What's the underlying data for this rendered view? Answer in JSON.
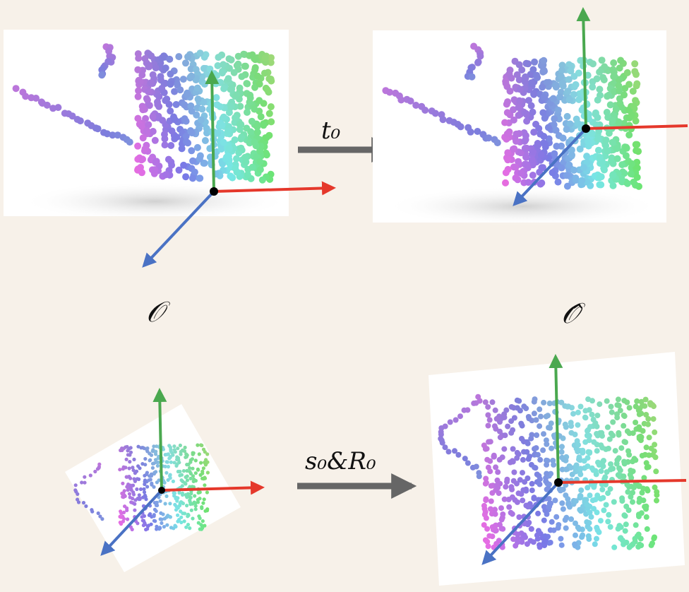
{
  "colors": {
    "background": "#f7f1e9",
    "axis_x": "#e5382b",
    "axis_y": "#4aa84f",
    "axis_z": "#4a72c4",
    "arrow": "#666666"
  },
  "transforms": {
    "translation_label": "t₀",
    "scale_rotation_label": "s₀&R₀"
  },
  "symbols": {
    "observed": "𝒪",
    "observed_hat": "𝒪̂"
  }
}
